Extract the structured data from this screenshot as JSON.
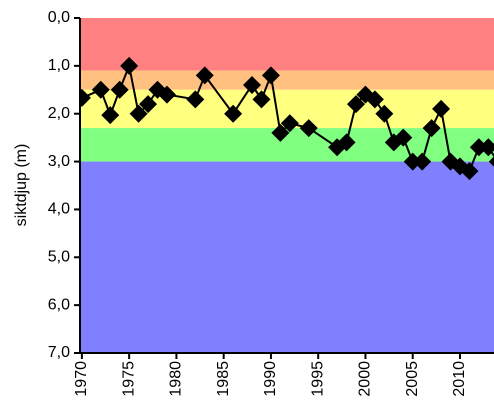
{
  "chart_data": {
    "type": "line",
    "y_label": "siktdjup (m)",
    "x": [
      1970,
      1972,
      1973,
      1974,
      1975,
      1976,
      1977,
      1978,
      1979,
      1982,
      1983,
      1986,
      1988,
      1989,
      1990,
      1991,
      1992,
      1994,
      1997,
      1998,
      1999,
      2000,
      2001,
      2002,
      2003,
      2004,
      2005,
      2006,
      2007,
      2008,
      2009,
      2010,
      2011,
      2012,
      2013,
      2014
    ],
    "series": [
      {
        "color": "#000000",
        "values": [
          1.67,
          1.5,
          2.03,
          1.5,
          1.0,
          2.0,
          1.8,
          1.5,
          1.6,
          1.7,
          1.2,
          2.0,
          1.4,
          1.7,
          1.2,
          2.4,
          2.2,
          2.3,
          2.7,
          2.6,
          1.8,
          1.6,
          1.7,
          2.0,
          2.6,
          2.5,
          3.0,
          3.0,
          2.3,
          1.9,
          3.0,
          3.1,
          3.2,
          2.7,
          2.7,
          3.0
        ]
      }
    ],
    "xlim": [
      1969.8,
      2013.6
    ],
    "ylim": [
      7,
      0
    ],
    "y_inverted": true,
    "xticks": [
      1970,
      1975,
      1980,
      1985,
      1990,
      1995,
      2000,
      2005,
      2010
    ],
    "yticks": [
      {
        "value": 0,
        "label": "0,0"
      },
      {
        "value": 1,
        "label": "1,0"
      },
      {
        "value": 2,
        "label": "2,0"
      },
      {
        "value": 3,
        "label": "3,0"
      },
      {
        "value": 4,
        "label": "4,0"
      },
      {
        "value": 5,
        "label": "5,0"
      },
      {
        "value": 6,
        "label": "6,0"
      },
      {
        "value": 7,
        "label": "7,0"
      }
    ],
    "bands": [
      {
        "from": 0,
        "to": 1.1,
        "color": "#ff8080"
      },
      {
        "from": 1.1,
        "to": 1.5,
        "color": "#ffc080"
      },
      {
        "from": 1.5,
        "to": 2.3,
        "color": "#ffff80"
      },
      {
        "from": 2.3,
        "to": 3.0,
        "color": "#80ff80"
      },
      {
        "from": 3.0,
        "to": 7,
        "color": "#8080ff"
      }
    ]
  }
}
